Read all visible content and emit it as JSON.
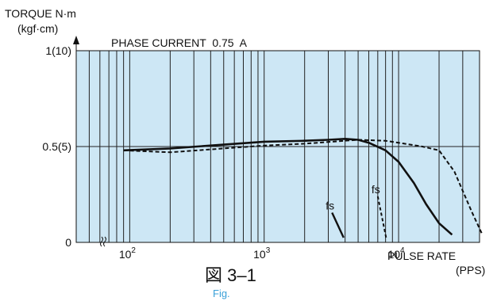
{
  "chart_data": {
    "type": "line",
    "x_scale": "log",
    "xlim": [
      40,
      40000
    ],
    "ylim": [
      0,
      1
    ],
    "y_axis_title": "TORQUE N·m",
    "y_axis_unit": "(kgf·cm)",
    "x_axis_title": "PULSE RATE",
    "x_axis_unit": "(PPS)",
    "annotation": "PHASE CURRENT  0.75  A",
    "grid": true,
    "x_ticks": [
      {
        "value": 100,
        "base": "10",
        "exp": "2"
      },
      {
        "value": 1000,
        "base": "10",
        "exp": "3"
      },
      {
        "value": 10000,
        "base": "10",
        "exp": "4"
      }
    ],
    "y_ticks": [
      {
        "value": 0,
        "label": "0"
      },
      {
        "value": 0.5,
        "label": "0.5(5)"
      },
      {
        "value": 1,
        "label": "1(10)"
      }
    ],
    "series": [
      {
        "style": "solid",
        "points": [
          [
            90,
            0.48
          ],
          [
            200,
            0.49
          ],
          [
            500,
            0.51
          ],
          [
            1000,
            0.525
          ],
          [
            2000,
            0.53
          ],
          [
            3000,
            0.535
          ],
          [
            4000,
            0.54
          ],
          [
            5000,
            0.535
          ],
          [
            6000,
            0.52
          ],
          [
            8000,
            0.48
          ],
          [
            10000,
            0.42
          ],
          [
            13000,
            0.31
          ],
          [
            16000,
            0.2
          ],
          [
            20000,
            0.1
          ],
          [
            25000,
            0.04
          ]
        ],
        "fs_label": "fs",
        "fs_points": [
          [
            3200,
            0.155
          ],
          [
            3900,
            0.025
          ]
        ]
      },
      {
        "style": "dashed",
        "points": [
          [
            90,
            0.48
          ],
          [
            200,
            0.47
          ],
          [
            500,
            0.49
          ],
          [
            1000,
            0.505
          ],
          [
            2000,
            0.515
          ],
          [
            5000,
            0.535
          ],
          [
            8000,
            0.53
          ],
          [
            10000,
            0.52
          ],
          [
            15000,
            0.5
          ],
          [
            20000,
            0.48
          ],
          [
            26000,
            0.37
          ],
          [
            35000,
            0.16
          ],
          [
            42000,
            0.04
          ]
        ],
        "fs_label": "fs",
        "fs_points": [
          [
            7000,
            0.24
          ],
          [
            8100,
            0.02
          ]
        ]
      }
    ]
  },
  "figure": {
    "title": "図 3–1",
    "subtitle": "Fig."
  }
}
